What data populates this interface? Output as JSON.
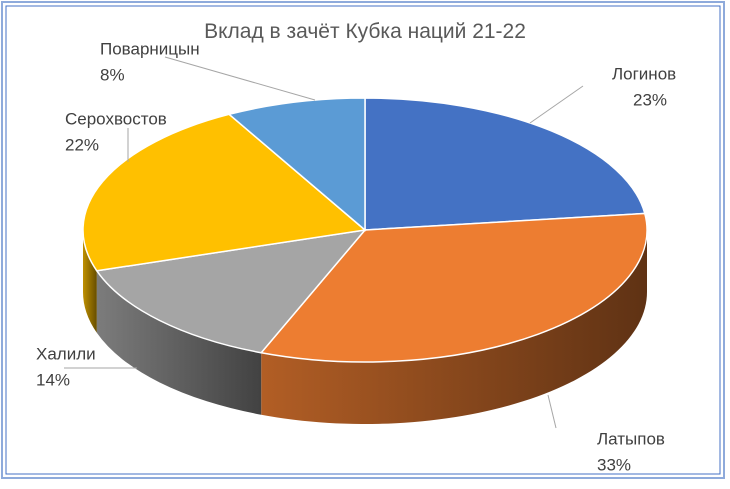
{
  "chart_data": {
    "type": "pie3d",
    "title": "Вклад в зачёт Кубка наций 21-22",
    "categories": [
      "Логинов",
      "Латыпов",
      "Халили",
      "Серохвостов",
      "Поварницын"
    ],
    "values": [
      23,
      33,
      14,
      22,
      8
    ],
    "value_labels": [
      "23%",
      "33%",
      "14%",
      "22%",
      "8%"
    ],
    "colors": [
      "#4472c4",
      "#ed7d31",
      "#a5a5a5",
      "#ffc000",
      "#5b9bd5"
    ]
  }
}
